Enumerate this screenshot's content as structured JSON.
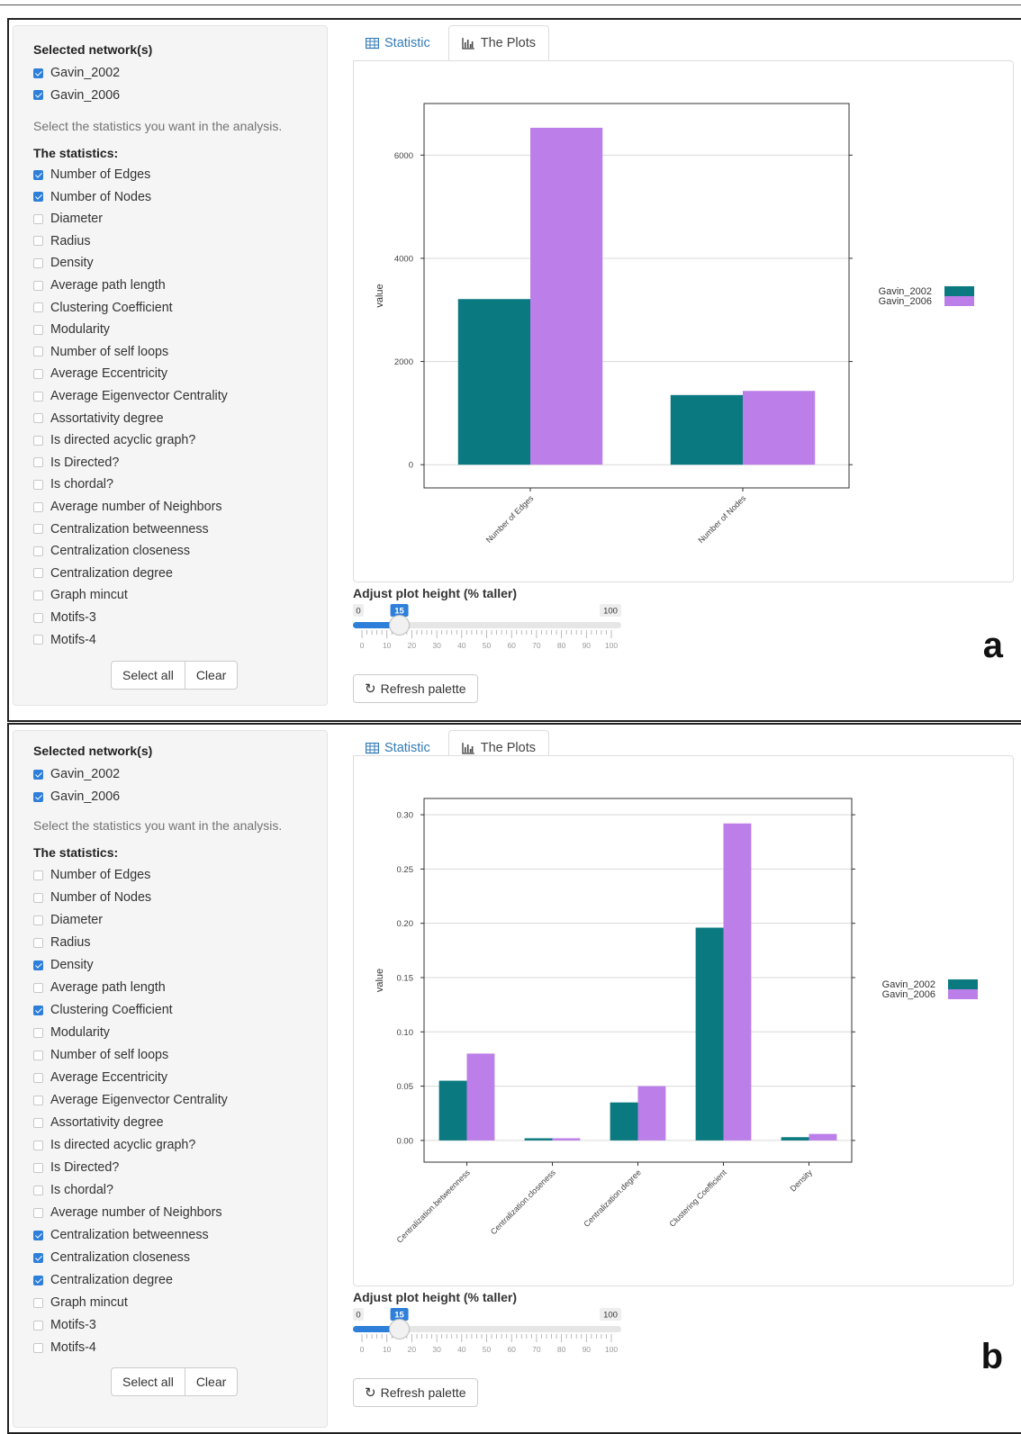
{
  "colors": {
    "gavin_2002": "#0b7a80",
    "gavin_2006": "#bc7fe9",
    "accent": "#2e7fd9"
  },
  "panels": [
    {
      "letter": "a",
      "sidebar": {
        "networks_title": "Selected network(s)",
        "networks": [
          {
            "label": "Gavin_2002",
            "checked": true
          },
          {
            "label": "Gavin_2006",
            "checked": true
          }
        ],
        "help": "Select the statistics you want in the analysis.",
        "stats_title": "The statistics:",
        "stats": [
          {
            "label": "Number of Edges",
            "checked": true
          },
          {
            "label": "Number of Nodes",
            "checked": true
          },
          {
            "label": "Diameter",
            "checked": false
          },
          {
            "label": "Radius",
            "checked": false
          },
          {
            "label": "Density",
            "checked": false
          },
          {
            "label": "Average path length",
            "checked": false
          },
          {
            "label": "Clustering Coefficient",
            "checked": false
          },
          {
            "label": "Modularity",
            "checked": false
          },
          {
            "label": "Number of self loops",
            "checked": false
          },
          {
            "label": "Average Eccentricity",
            "checked": false
          },
          {
            "label": "Average Eigenvector Centrality",
            "checked": false
          },
          {
            "label": "Assortativity degree",
            "checked": false
          },
          {
            "label": "Is directed acyclic graph?",
            "checked": false
          },
          {
            "label": "Is Directed?",
            "checked": false
          },
          {
            "label": "Is chordal?",
            "checked": false
          },
          {
            "label": "Average number of Neighbors",
            "checked": false
          },
          {
            "label": "Centralization betweenness",
            "checked": false
          },
          {
            "label": "Centralization closeness",
            "checked": false
          },
          {
            "label": "Centralization degree",
            "checked": false
          },
          {
            "label": "Graph mincut",
            "checked": false
          },
          {
            "label": "Motifs-3",
            "checked": false
          },
          {
            "label": "Motifs-4",
            "checked": false
          }
        ],
        "select_all": "Select all",
        "clear": "Clear"
      },
      "tabs": [
        {
          "label": "Statistic",
          "active": false
        },
        {
          "label": "The Plots",
          "active": true
        }
      ],
      "slider": {
        "label": "Adjust plot height (% taller)",
        "min": "0",
        "max": "100",
        "value": 15,
        "ticks": [
          "0",
          "10",
          "20",
          "30",
          "40",
          "50",
          "60",
          "70",
          "80",
          "90",
          "100"
        ]
      },
      "refresh": "Refresh palette"
    },
    {
      "letter": "b",
      "sidebar": {
        "networks_title": "Selected network(s)",
        "networks": [
          {
            "label": "Gavin_2002",
            "checked": true
          },
          {
            "label": "Gavin_2006",
            "checked": true
          }
        ],
        "help": "Select the statistics you want in the analysis.",
        "stats_title": "The statistics:",
        "stats": [
          {
            "label": "Number of Edges",
            "checked": false
          },
          {
            "label": "Number of Nodes",
            "checked": false
          },
          {
            "label": "Diameter",
            "checked": false
          },
          {
            "label": "Radius",
            "checked": false
          },
          {
            "label": "Density",
            "checked": true
          },
          {
            "label": "Average path length",
            "checked": false
          },
          {
            "label": "Clustering Coefficient",
            "checked": true
          },
          {
            "label": "Modularity",
            "checked": false
          },
          {
            "label": "Number of self loops",
            "checked": false
          },
          {
            "label": "Average Eccentricity",
            "checked": false
          },
          {
            "label": "Average Eigenvector Centrality",
            "checked": false
          },
          {
            "label": "Assortativity degree",
            "checked": false
          },
          {
            "label": "Is directed acyclic graph?",
            "checked": false
          },
          {
            "label": "Is Directed?",
            "checked": false
          },
          {
            "label": "Is chordal?",
            "checked": false
          },
          {
            "label": "Average number of Neighbors",
            "checked": false
          },
          {
            "label": "Centralization betweenness",
            "checked": true
          },
          {
            "label": "Centralization closeness",
            "checked": true
          },
          {
            "label": "Centralization degree",
            "checked": true
          },
          {
            "label": "Graph mincut",
            "checked": false
          },
          {
            "label": "Motifs-3",
            "checked": false
          },
          {
            "label": "Motifs-4",
            "checked": false
          }
        ],
        "select_all": "Select all",
        "clear": "Clear"
      },
      "tabs": [
        {
          "label": "Statistic",
          "active": false
        },
        {
          "label": "The Plots",
          "active": true
        }
      ],
      "slider": {
        "label": "Adjust plot height (% taller)",
        "min": "0",
        "max": "100",
        "value": 15,
        "ticks": [
          "0",
          "10",
          "20",
          "30",
          "40",
          "50",
          "60",
          "70",
          "80",
          "90",
          "100"
        ]
      },
      "refresh": "Refresh palette"
    }
  ],
  "chart_data": [
    {
      "type": "bar",
      "categories": [
        "Number of Edges",
        "Number of Nodes"
      ],
      "series": [
        {
          "name": "Gavin_2002",
          "values": [
            3210,
            1350
          ]
        },
        {
          "name": "Gavin_2006",
          "values": [
            6530,
            1430
          ]
        }
      ],
      "ylabel": "value",
      "ylim": [
        -450,
        7000
      ],
      "yticks": [
        0,
        2000,
        4000,
        6000
      ],
      "ytick_labels": [
        "0",
        "2000",
        "4000",
        "6000"
      ],
      "legend": "right",
      "grid": true
    },
    {
      "type": "bar",
      "categories": [
        "Centralization.betweenness",
        "Centralization.closeness",
        "Centralization.degree",
        "Clustering Coefficient",
        "Density"
      ],
      "series": [
        {
          "name": "Gavin_2002",
          "values": [
            0.055,
            0.002,
            0.035,
            0.196,
            0.003
          ]
        },
        {
          "name": "Gavin_2006",
          "values": [
            0.08,
            0.002,
            0.05,
            0.292,
            0.006
          ]
        }
      ],
      "ylabel": "value",
      "ylim": [
        -0.02,
        0.315
      ],
      "yticks": [
        0,
        0.05,
        0.1,
        0.15,
        0.2,
        0.25,
        0.3
      ],
      "ytick_labels": [
        "0.00",
        "0.05",
        "0.10",
        "0.15",
        "0.20",
        "0.25",
        "0.30"
      ],
      "legend": "right",
      "grid": true
    }
  ]
}
